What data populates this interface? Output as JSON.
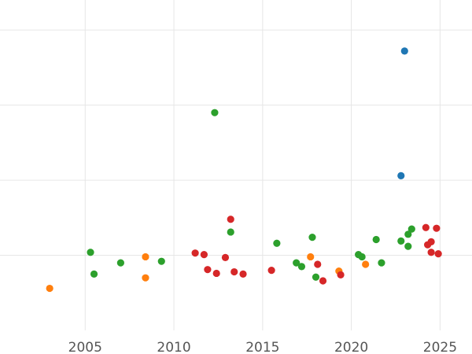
{
  "chart_data": {
    "type": "scatter",
    "title": "",
    "xlabel": "",
    "ylabel": "",
    "xlim": [
      2000.2,
      2026.8
    ],
    "ylim": [
      0,
      440
    ],
    "grid": true,
    "x_ticks": [
      2005,
      2010,
      2015,
      2020,
      2025
    ],
    "x_tick_labels": [
      "2005",
      "2010",
      "2015",
      "2020",
      "2025"
    ],
    "y_gridlines": [
      100,
      200,
      300,
      400
    ],
    "colors": {
      "blue": "#1f77b4",
      "orange": "#ff7f0e",
      "green": "#2ca02c",
      "red": "#d62728",
      "grid": "#e6e6e6",
      "tick_text": "#555555"
    },
    "series": [
      {
        "color": "#1f77b4",
        "points": [
          {
            "x": 2023.0,
            "y": 372
          },
          {
            "x": 2022.8,
            "y": 206
          }
        ]
      },
      {
        "color": "#2ca02c",
        "points": [
          {
            "x": 2005.3,
            "y": 104
          },
          {
            "x": 2005.5,
            "y": 75
          },
          {
            "x": 2007.0,
            "y": 90
          },
          {
            "x": 2009.3,
            "y": 92
          },
          {
            "x": 2012.3,
            "y": 290
          },
          {
            "x": 2013.2,
            "y": 131
          },
          {
            "x": 2015.8,
            "y": 116
          },
          {
            "x": 2016.9,
            "y": 90
          },
          {
            "x": 2017.2,
            "y": 85
          },
          {
            "x": 2017.8,
            "y": 124
          },
          {
            "x": 2018.0,
            "y": 71
          },
          {
            "x": 2020.4,
            "y": 101
          },
          {
            "x": 2020.6,
            "y": 98
          },
          {
            "x": 2021.4,
            "y": 121
          },
          {
            "x": 2021.7,
            "y": 90
          },
          {
            "x": 2022.8,
            "y": 119
          },
          {
            "x": 2023.2,
            "y": 128
          },
          {
            "x": 2023.4,
            "y": 135
          },
          {
            "x": 2023.2,
            "y": 112
          }
        ]
      },
      {
        "color": "#ff7f0e",
        "points": [
          {
            "x": 2003.0,
            "y": 56
          },
          {
            "x": 2008.4,
            "y": 98
          },
          {
            "x": 2008.4,
            "y": 70
          },
          {
            "x": 2017.7,
            "y": 98
          },
          {
            "x": 2019.3,
            "y": 79
          },
          {
            "x": 2020.8,
            "y": 88
          }
        ]
      },
      {
        "color": "#d62728",
        "points": [
          {
            "x": 2011.2,
            "y": 103
          },
          {
            "x": 2011.7,
            "y": 101
          },
          {
            "x": 2011.9,
            "y": 81
          },
          {
            "x": 2012.4,
            "y": 76
          },
          {
            "x": 2012.9,
            "y": 97
          },
          {
            "x": 2013.2,
            "y": 148
          },
          {
            "x": 2013.4,
            "y": 78
          },
          {
            "x": 2013.9,
            "y": 75
          },
          {
            "x": 2015.5,
            "y": 80
          },
          {
            "x": 2018.1,
            "y": 88
          },
          {
            "x": 2018.4,
            "y": 66
          },
          {
            "x": 2019.4,
            "y": 74
          },
          {
            "x": 2024.2,
            "y": 137
          },
          {
            "x": 2024.3,
            "y": 114
          },
          {
            "x": 2024.5,
            "y": 118
          },
          {
            "x": 2024.5,
            "y": 104
          },
          {
            "x": 2024.8,
            "y": 136
          },
          {
            "x": 2024.9,
            "y": 102
          }
        ]
      }
    ]
  }
}
